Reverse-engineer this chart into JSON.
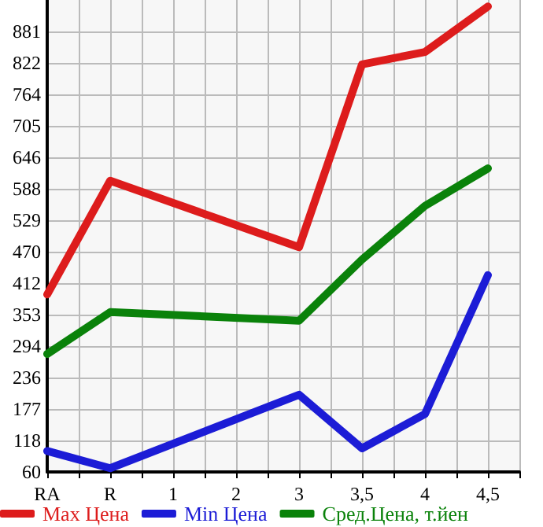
{
  "chart_data": {
    "type": "line",
    "categories": [
      "RA",
      "R",
      "1",
      "2",
      "3",
      "3,5",
      "4",
      "4,5"
    ],
    "series": [
      {
        "name": "Max Цена",
        "color": "#dd1c1c",
        "values": [
          391,
          603,
          null,
          null,
          479,
          820,
          843,
          928
        ]
      },
      {
        "name": "Min Цена",
        "color": "#1c1cd6",
        "values": [
          99,
          67,
          null,
          null,
          204,
          104,
          168,
          427
        ]
      },
      {
        "name": "Сред.Цена, т.йен",
        "color": "#0a820a",
        "values": [
          280,
          358,
          null,
          null,
          342,
          456,
          556,
          626
        ]
      }
    ],
    "ylim": [
      60,
      940
    ],
    "yticks": [
      60,
      118,
      177,
      236,
      294,
      353,
      412,
      470,
      529,
      588,
      646,
      705,
      764,
      822,
      881
    ],
    "grid": true,
    "legend": "bottom",
    "marker": "none",
    "line_style": "solid"
  }
}
